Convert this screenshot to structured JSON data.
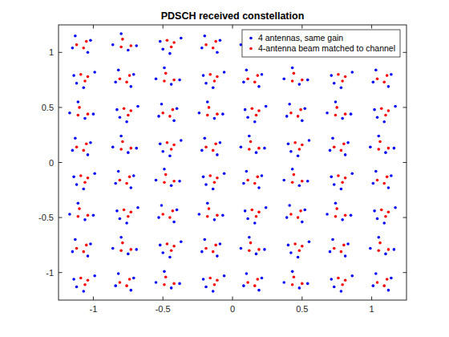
{
  "chart_data": {
    "type": "scatter",
    "title": "PDSCH received constellation",
    "xlim": [
      -1.25,
      1.25
    ],
    "ylim": [
      -1.25,
      1.25
    ],
    "xticks": [
      -1,
      -0.5,
      0,
      0.5,
      1
    ],
    "yticks": [
      -1,
      -0.5,
      0,
      0.5,
      1
    ],
    "grid": false,
    "legend": "northeast",
    "series": [
      {
        "name": "4 antennas, same gain",
        "color": "#0000ff",
        "marker": "point",
        "x": [
          -1.02,
          -1.13,
          -1.15,
          -1.04,
          -0.8,
          -0.69,
          -0.86,
          -0.75,
          -0.37,
          -0.52,
          -0.45,
          -0.5,
          -0.09,
          -0.2,
          -0.22,
          -0.11,
          0.12,
          0.23,
          0.06,
          0.17,
          0.55,
          0.4,
          0.47,
          0.42,
          0.83,
          0.72,
          0.7,
          0.81,
          1.05,
          1.16,
          0.99,
          1.1,
          -0.99,
          -1.14,
          -1.07,
          -1.12,
          -0.71,
          -0.82,
          -0.84,
          -0.73,
          -0.49,
          -0.38,
          -0.55,
          -0.44,
          -0.06,
          -0.21,
          -0.14,
          -0.19,
          0.21,
          0.1,
          0.08,
          0.19,
          0.43,
          0.54,
          0.37,
          0.48,
          0.86,
          0.71,
          0.78,
          0.73,
          1.14,
          1.03,
          1.01,
          1.12,
          -1.11,
          -1.0,
          -1.17,
          -1.06,
          -0.68,
          -0.83,
          -0.76,
          -0.81,
          -0.4,
          -0.51,
          -0.53,
          -0.42,
          -0.18,
          -0.07,
          -0.24,
          -0.13,
          0.24,
          0.09,
          0.16,
          0.11,
          0.52,
          0.41,
          0.39,
          0.5,
          0.74,
          0.85,
          0.68,
          0.79,
          1.17,
          1.02,
          1.09,
          1.04,
          -1.02,
          -1.13,
          -1.15,
          -1.04,
          -0.8,
          -0.69,
          -0.86,
          -0.75,
          -0.37,
          -0.52,
          -0.45,
          -0.5,
          -0.09,
          -0.2,
          -0.22,
          -0.11,
          0.12,
          0.23,
          0.06,
          0.17,
          0.55,
          0.4,
          0.47,
          0.42,
          0.83,
          0.72,
          0.7,
          0.81,
          1.05,
          1.16,
          0.99,
          1.1,
          -0.99,
          -1.14,
          -1.07,
          -1.12,
          -0.71,
          -0.82,
          -0.84,
          -0.73,
          -0.49,
          -0.38,
          -0.55,
          -0.44,
          -0.06,
          -0.21,
          -0.14,
          -0.19,
          0.21,
          0.1,
          0.08,
          0.19,
          0.43,
          0.54,
          0.37,
          0.48,
          0.86,
          0.71,
          0.78,
          0.73,
          1.14,
          1.03,
          1.01,
          1.12,
          -1.11,
          -1.0,
          -1.17,
          -1.06,
          -0.68,
          -0.83,
          -0.76,
          -0.81,
          -0.4,
          -0.51,
          -0.53,
          -0.42,
          -0.18,
          -0.07,
          -0.24,
          -0.13,
          0.24,
          0.09,
          0.16,
          0.11,
          0.52,
          0.41,
          0.39,
          0.5,
          0.74,
          0.85,
          0.68,
          0.79,
          1.17,
          1.02,
          1.09,
          1.04,
          -1.02,
          -1.13,
          -1.15,
          -1.04,
          -0.8,
          -0.69,
          -0.86,
          -0.75,
          -0.37,
          -0.52,
          -0.45,
          -0.5,
          -0.09,
          -0.2,
          -0.22,
          -0.11,
          0.12,
          0.23,
          0.06,
          0.17,
          0.55,
          0.4,
          0.47,
          0.42,
          0.83,
          0.72,
          0.7,
          0.81,
          1.05,
          1.16,
          0.99,
          1.1,
          -0.99,
          -1.14,
          -1.07,
          -1.12,
          -0.71,
          -0.82,
          -0.84,
          -0.73,
          -0.49,
          -0.38,
          -0.55,
          -0.44,
          -0.06,
          -0.21,
          -0.14,
          -0.19,
          0.21,
          0.1,
          0.08,
          0.19,
          0.43,
          0.54,
          0.37,
          0.48,
          0.86,
          0.71,
          0.78,
          0.73,
          1.14,
          1.03,
          1.01,
          1.12
        ],
        "values": [
          1.11,
          1.15,
          1.04,
          1.0,
          1.17,
          1.06,
          1.07,
          1.02,
          1.13,
          1.1,
          0.99,
          1.03,
          1.11,
          1.15,
          1.04,
          1.0,
          1.17,
          1.06,
          1.07,
          1.02,
          1.13,
          1.1,
          0.99,
          1.03,
          1.11,
          1.15,
          1.04,
          1.0,
          1.17,
          1.06,
          1.07,
          1.02,
          0.82,
          0.79,
          0.68,
          0.72,
          0.8,
          0.84,
          0.73,
          0.69,
          0.86,
          0.75,
          0.76,
          0.71,
          0.82,
          0.79,
          0.68,
          0.72,
          0.8,
          0.84,
          0.73,
          0.69,
          0.86,
          0.75,
          0.76,
          0.71,
          0.82,
          0.79,
          0.68,
          0.72,
          0.8,
          0.84,
          0.73,
          0.69,
          0.55,
          0.44,
          0.45,
          0.4,
          0.51,
          0.48,
          0.37,
          0.41,
          0.49,
          0.53,
          0.42,
          0.38,
          0.55,
          0.44,
          0.45,
          0.4,
          0.51,
          0.48,
          0.37,
          0.41,
          0.49,
          0.53,
          0.42,
          0.38,
          0.55,
          0.44,
          0.45,
          0.4,
          0.51,
          0.48,
          0.37,
          0.41,
          0.18,
          0.22,
          0.11,
          0.07,
          0.24,
          0.13,
          0.14,
          0.09,
          0.2,
          0.17,
          0.06,
          0.1,
          0.18,
          0.22,
          0.11,
          0.07,
          0.24,
          0.13,
          0.14,
          0.09,
          0.2,
          0.17,
          0.06,
          0.1,
          0.18,
          0.22,
          0.11,
          0.07,
          0.24,
          0.13,
          0.14,
          0.09,
          -0.1,
          -0.13,
          -0.24,
          -0.2,
          -0.12,
          -0.08,
          -0.19,
          -0.23,
          -0.06,
          -0.17,
          -0.16,
          -0.21,
          -0.1,
          -0.13,
          -0.24,
          -0.2,
          -0.12,
          -0.08,
          -0.19,
          -0.23,
          -0.06,
          -0.17,
          -0.16,
          -0.21,
          -0.1,
          -0.13,
          -0.24,
          -0.2,
          -0.12,
          -0.08,
          -0.19,
          -0.23,
          -0.37,
          -0.48,
          -0.47,
          -0.52,
          -0.41,
          -0.44,
          -0.55,
          -0.51,
          -0.43,
          -0.39,
          -0.5,
          -0.54,
          -0.37,
          -0.48,
          -0.47,
          -0.52,
          -0.41,
          -0.44,
          -0.55,
          -0.51,
          -0.43,
          -0.39,
          -0.5,
          -0.54,
          -0.37,
          -0.48,
          -0.47,
          -0.52,
          -0.41,
          -0.44,
          -0.55,
          -0.51,
          -0.74,
          -0.7,
          -0.81,
          -0.85,
          -0.68,
          -0.79,
          -0.78,
          -0.83,
          -0.72,
          -0.75,
          -0.86,
          -0.82,
          -0.74,
          -0.7,
          -0.81,
          -0.85,
          -0.68,
          -0.79,
          -0.78,
          -0.83,
          -0.72,
          -0.75,
          -0.86,
          -0.82,
          -0.74,
          -0.7,
          -0.81,
          -0.85,
          -0.68,
          -0.79,
          -0.78,
          -0.83,
          -1.03,
          -1.06,
          -1.17,
          -1.13,
          -1.05,
          -1.01,
          -1.12,
          -1.16,
          -0.99,
          -1.1,
          -1.09,
          -1.14,
          -1.03,
          -1.06,
          -1.17,
          -1.13,
          -1.05,
          -1.01,
          -1.12,
          -1.16,
          -0.99,
          -1.1,
          -1.09,
          -1.14,
          -1.03,
          -1.06,
          -1.17,
          -1.13,
          -1.05,
          -1.01,
          -1.12,
          -1.16
        ]
      },
      {
        "name": "4-antenna beam matched to channel",
        "color": "#ff0000",
        "marker": "point",
        "x": [
          -1.05,
          -1.12,
          -1.07,
          -0.79,
          -0.73,
          -0.8,
          -0.44,
          -0.47,
          -0.42,
          -0.12,
          -0.19,
          -0.14,
          0.13,
          0.19,
          0.12,
          0.48,
          0.45,
          0.5,
          0.8,
          0.73,
          0.78,
          1.06,
          1.12,
          1.05,
          -1.06,
          -1.09,
          -1.04,
          -0.74,
          -0.81,
          -0.76,
          -0.48,
          -0.42,
          -0.49,
          -0.13,
          -0.16,
          -0.11,
          0.18,
          0.11,
          0.16,
          0.44,
          0.5,
          0.43,
          0.79,
          0.76,
          0.81,
          1.11,
          1.04,
          1.09,
          -1.1,
          -1.04,
          -1.11,
          -0.75,
          -0.78,
          -0.73,
          -0.43,
          -0.5,
          -0.45,
          -0.17,
          -0.11,
          -0.18,
          0.17,
          0.14,
          0.19,
          0.49,
          0.42,
          0.47,
          0.75,
          0.81,
          0.74,
          1.1,
          1.07,
          1.12,
          -1.05,
          -1.12,
          -1.07,
          -0.79,
          -0.73,
          -0.8,
          -0.44,
          -0.47,
          -0.42,
          -0.12,
          -0.19,
          -0.14,
          0.13,
          0.19,
          0.12,
          0.48,
          0.45,
          0.5,
          0.8,
          0.73,
          0.78,
          1.06,
          1.12,
          1.05,
          -1.06,
          -1.09,
          -1.04,
          -0.74,
          -0.81,
          -0.76,
          -0.48,
          -0.42,
          -0.49,
          -0.13,
          -0.16,
          -0.11,
          0.18,
          0.11,
          0.16,
          0.44,
          0.5,
          0.43,
          0.79,
          0.76,
          0.81,
          1.11,
          1.04,
          1.09,
          -1.1,
          -1.04,
          -1.11,
          -0.75,
          -0.78,
          -0.73,
          -0.43,
          -0.5,
          -0.45,
          -0.17,
          -0.11,
          -0.18,
          0.17,
          0.14,
          0.19,
          0.49,
          0.42,
          0.47,
          0.75,
          0.81,
          0.74,
          1.1,
          1.07,
          1.12,
          -1.05,
          -1.12,
          -1.07,
          -0.79,
          -0.73,
          -0.8,
          -0.44,
          -0.47,
          -0.42,
          -0.12,
          -0.19,
          -0.14,
          0.13,
          0.19,
          0.12,
          0.48,
          0.45,
          0.5,
          0.8,
          0.73,
          0.78,
          1.06,
          1.12,
          1.05,
          -1.06,
          -1.09,
          -1.04,
          -0.74,
          -0.81,
          -0.76,
          -0.48,
          -0.42,
          -0.49,
          -0.13,
          -0.16,
          -0.11,
          0.18,
          0.11,
          0.16,
          0.44,
          0.5,
          0.43,
          0.79,
          0.76,
          0.81,
          1.11,
          1.04,
          1.09
        ],
        "values": [
          1.1,
          1.07,
          1.04,
          1.12,
          1.06,
          1.05,
          1.05,
          1.11,
          1.09,
          1.1,
          1.07,
          1.04,
          1.12,
          1.06,
          1.05,
          1.05,
          1.11,
          1.09,
          1.1,
          1.07,
          1.04,
          1.12,
          1.06,
          1.05,
          0.74,
          0.8,
          0.78,
          0.79,
          0.76,
          0.73,
          0.81,
          0.75,
          0.74,
          0.74,
          0.8,
          0.78,
          0.79,
          0.76,
          0.73,
          0.81,
          0.75,
          0.74,
          0.74,
          0.8,
          0.78,
          0.79,
          0.76,
          0.73,
          0.5,
          0.44,
          0.43,
          0.43,
          0.49,
          0.47,
          0.48,
          0.45,
          0.42,
          0.5,
          0.44,
          0.43,
          0.43,
          0.49,
          0.47,
          0.48,
          0.45,
          0.42,
          0.5,
          0.44,
          0.43,
          0.43,
          0.49,
          0.47,
          0.17,
          0.14,
          0.11,
          0.19,
          0.13,
          0.12,
          0.12,
          0.18,
          0.16,
          0.17,
          0.14,
          0.11,
          0.19,
          0.13,
          0.12,
          0.12,
          0.18,
          0.16,
          0.17,
          0.14,
          0.11,
          0.19,
          0.13,
          0.12,
          -0.18,
          -0.12,
          -0.14,
          -0.13,
          -0.16,
          -0.19,
          -0.11,
          -0.17,
          -0.18,
          -0.18,
          -0.12,
          -0.14,
          -0.13,
          -0.16,
          -0.19,
          -0.11,
          -0.17,
          -0.18,
          -0.18,
          -0.12,
          -0.14,
          -0.13,
          -0.16,
          -0.19,
          -0.42,
          -0.48,
          -0.49,
          -0.49,
          -0.43,
          -0.45,
          -0.44,
          -0.47,
          -0.5,
          -0.42,
          -0.48,
          -0.49,
          -0.49,
          -0.43,
          -0.45,
          -0.44,
          -0.47,
          -0.5,
          -0.42,
          -0.48,
          -0.49,
          -0.49,
          -0.43,
          -0.45,
          -0.75,
          -0.78,
          -0.81,
          -0.73,
          -0.79,
          -0.8,
          -0.8,
          -0.74,
          -0.76,
          -0.75,
          -0.78,
          -0.81,
          -0.73,
          -0.79,
          -0.8,
          -0.8,
          -0.74,
          -0.76,
          -0.75,
          -0.78,
          -0.81,
          -0.73,
          -0.79,
          -0.8,
          -1.11,
          -1.05,
          -1.07,
          -1.06,
          -1.09,
          -1.12,
          -1.04,
          -1.1,
          -1.11,
          -1.11,
          -1.05,
          -1.07,
          -1.06,
          -1.09,
          -1.12,
          -1.04,
          -1.1,
          -1.11,
          -1.11,
          -1.05,
          -1.07,
          -1.06,
          -1.09,
          -1.12
        ]
      }
    ]
  }
}
